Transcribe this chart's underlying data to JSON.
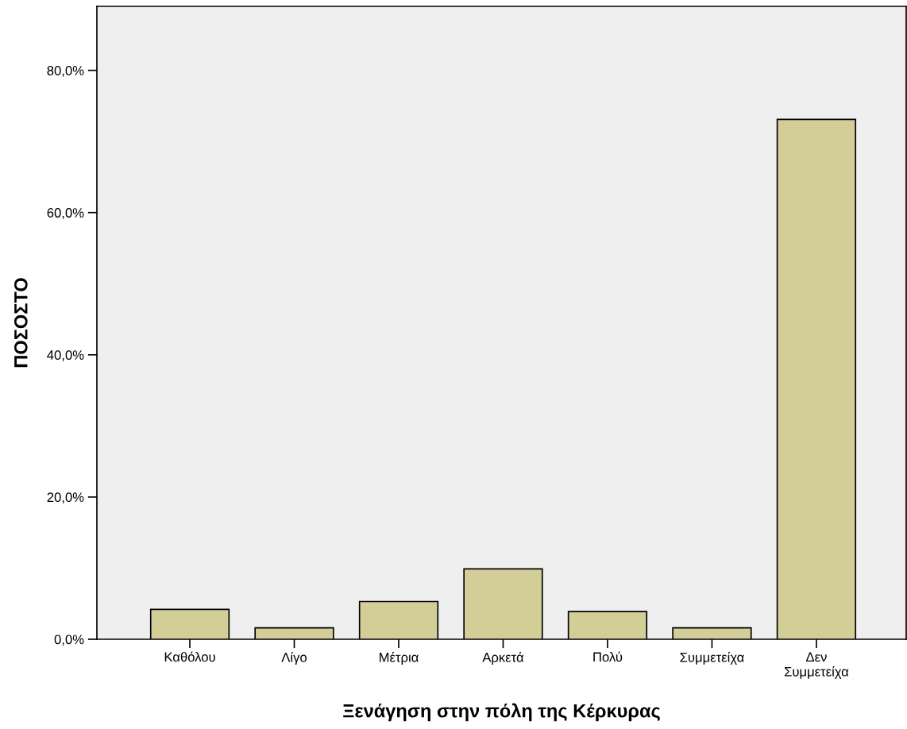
{
  "chart_data": {
    "type": "bar",
    "xlabel": "Ξενάγηση στην πόλη της Κέρκυρας",
    "ylabel": "ΠΟΣΟΣΤΟ",
    "categories": [
      "Καθόλου",
      "Λίγο",
      "Μέτρια",
      "Αρκετά",
      "Πολύ",
      "Συμμετείχα",
      "Δεν\nΣυμμετείχα"
    ],
    "values": [
      4.2,
      1.6,
      5.3,
      9.9,
      3.9,
      1.6,
      73.1
    ],
    "color": "#d3ce98",
    "ylim": [
      0,
      89
    ],
    "yticks": [
      {
        "value": 0,
        "label": "0,0%"
      },
      {
        "value": 20,
        "label": "20,0%"
      },
      {
        "value": 40,
        "label": "40,0%"
      },
      {
        "value": 60,
        "label": "60,0%"
      },
      {
        "value": 80,
        "label": "80,0%"
      }
    ],
    "grid": false
  }
}
